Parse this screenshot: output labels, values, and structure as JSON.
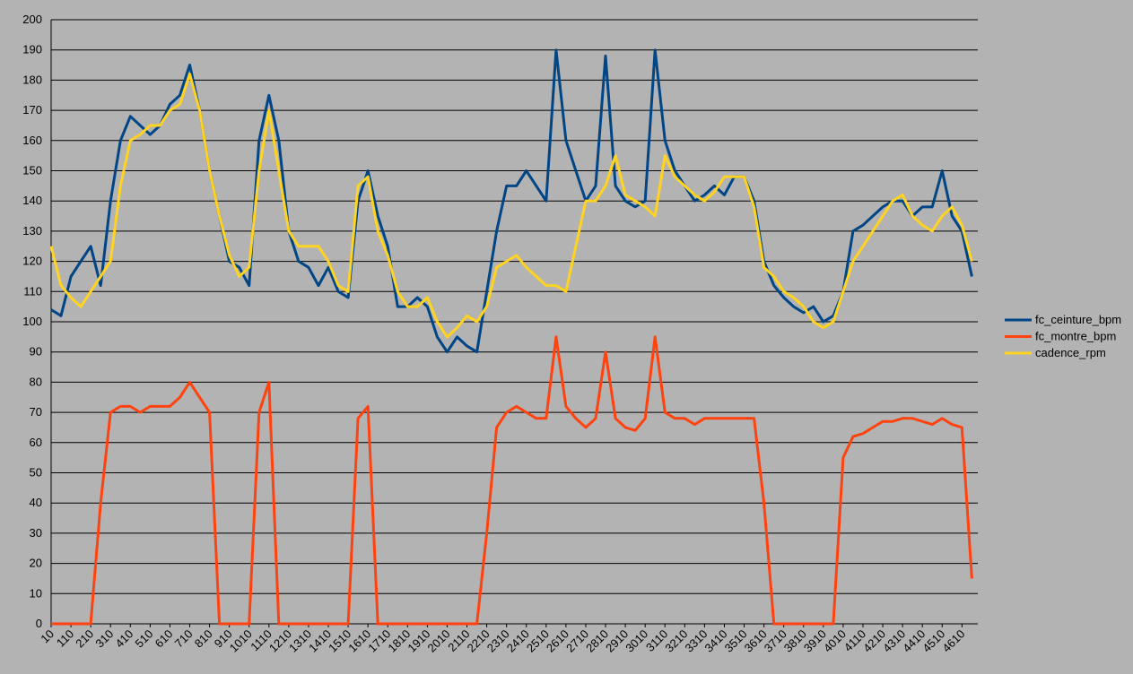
{
  "chart_data": {
    "type": "line",
    "x": [
      10,
      60,
      110,
      160,
      210,
      260,
      310,
      360,
      410,
      460,
      510,
      560,
      610,
      660,
      710,
      760,
      810,
      860,
      910,
      960,
      1010,
      1060,
      1110,
      1160,
      1210,
      1260,
      1310,
      1360,
      1410,
      1460,
      1510,
      1560,
      1610,
      1660,
      1710,
      1760,
      1810,
      1860,
      1910,
      1960,
      2010,
      2060,
      2110,
      2160,
      2210,
      2260,
      2310,
      2360,
      2410,
      2460,
      2510,
      2560,
      2610,
      2660,
      2710,
      2760,
      2810,
      2860,
      2910,
      2960,
      3010,
      3060,
      3110,
      3160,
      3210,
      3260,
      3310,
      3360,
      3410,
      3460,
      3510,
      3560,
      3610,
      3660,
      3710,
      3760,
      3810,
      3860,
      3910,
      3960,
      4010,
      4060,
      4110,
      4160,
      4210,
      4260,
      4310,
      4360,
      4410,
      4460,
      4510,
      4560,
      4610,
      4660
    ],
    "series": [
      {
        "name": "fc_ceinture_bpm",
        "color": "#004586",
        "values": [
          104,
          102,
          115,
          120,
          125,
          112,
          140,
          160,
          168,
          165,
          162,
          165,
          172,
          175,
          185,
          170,
          150,
          135,
          120,
          118,
          112,
          160,
          175,
          160,
          130,
          120,
          118,
          112,
          118,
          110,
          108,
          140,
          150,
          135,
          125,
          105,
          105,
          108,
          105,
          95,
          90,
          95,
          92,
          90,
          110,
          130,
          145,
          145,
          150,
          145,
          140,
          190,
          160,
          150,
          140,
          145,
          188,
          145,
          140,
          138,
          140,
          190,
          160,
          150,
          145,
          140,
          142,
          145,
          142,
          148,
          148,
          140,
          120,
          112,
          108,
          105,
          103,
          105,
          100,
          102,
          110,
          130,
          132,
          135,
          138,
          140,
          140,
          135,
          138,
          138,
          150,
          135,
          130,
          115
        ]
      },
      {
        "name": "fc_montre_bpm",
        "color": "#ff420e",
        "values": [
          0,
          0,
          0,
          0,
          0,
          40,
          70,
          72,
          72,
          70,
          72,
          72,
          72,
          75,
          80,
          75,
          70,
          0,
          0,
          0,
          0,
          70,
          80,
          0,
          0,
          0,
          0,
          0,
          0,
          0,
          0,
          68,
          72,
          0,
          0,
          0,
          0,
          0,
          0,
          0,
          0,
          0,
          0,
          0,
          30,
          65,
          70,
          72,
          70,
          68,
          68,
          95,
          72,
          68,
          65,
          68,
          90,
          68,
          65,
          64,
          68,
          95,
          70,
          68,
          68,
          66,
          68,
          68,
          68,
          68,
          68,
          68,
          40,
          0,
          0,
          0,
          0,
          0,
          0,
          0,
          55,
          62,
          63,
          65,
          67,
          67,
          68,
          68,
          67,
          66,
          68,
          66,
          65,
          15
        ]
      },
      {
        "name": "cadence_rpm",
        "color": "#ffd320",
        "values": [
          125,
          112,
          108,
          105,
          110,
          115,
          120,
          145,
          160,
          162,
          165,
          165,
          170,
          172,
          182,
          170,
          150,
          135,
          122,
          115,
          118,
          150,
          170,
          150,
          130,
          125,
          125,
          125,
          120,
          112,
          110,
          145,
          148,
          130,
          122,
          110,
          105,
          105,
          108,
          100,
          95,
          98,
          102,
          100,
          105,
          118,
          120,
          122,
          118,
          115,
          112,
          112,
          110,
          125,
          140,
          140,
          145,
          155,
          142,
          140,
          138,
          135,
          155,
          148,
          145,
          142,
          140,
          143,
          148,
          148,
          148,
          138,
          118,
          115,
          110,
          108,
          105,
          100,
          98,
          100,
          110,
          120,
          125,
          130,
          135,
          140,
          142,
          135,
          132,
          130,
          135,
          138,
          132,
          120
        ]
      }
    ],
    "xlim": [
      10,
      4690
    ],
    "xticks": [
      10,
      110,
      210,
      310,
      410,
      510,
      610,
      710,
      810,
      910,
      1010,
      1110,
      1210,
      1310,
      1410,
      1510,
      1610,
      1710,
      1810,
      1910,
      2010,
      2110,
      2210,
      2310,
      2410,
      2510,
      2610,
      2710,
      2810,
      2910,
      3010,
      3110,
      3210,
      3310,
      3410,
      3510,
      3610,
      3710,
      3810,
      3910,
      4010,
      4110,
      4210,
      4310,
      4410,
      4510,
      4610
    ],
    "ylim": [
      0,
      200
    ],
    "yticks": [
      0,
      10,
      20,
      30,
      40,
      50,
      60,
      70,
      80,
      90,
      100,
      110,
      120,
      130,
      140,
      150,
      160,
      170,
      180,
      190,
      200
    ],
    "grid": true,
    "legend": "right"
  }
}
